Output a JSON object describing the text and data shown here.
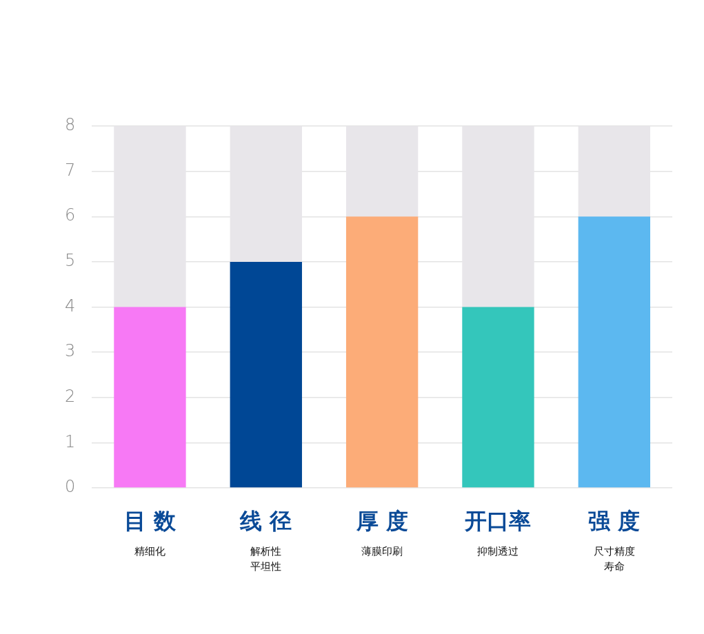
{
  "chart_data": {
    "type": "bar",
    "stacked": true,
    "categories": [
      "目 数",
      "线 径",
      "厚 度",
      "开口率",
      "强 度"
    ],
    "annotations": [
      "精细化",
      "解析性平坦性",
      "薄膜印刷",
      "抑制透过",
      "尺寸精度寿命"
    ],
    "series": [
      {
        "colors": [
          "#f779f5",
          "#004795",
          "#fcac78",
          "#34c6bb",
          "#5cb8f0"
        ],
        "values": [
          4,
          5,
          6,
          4,
          6
        ]
      },
      {
        "color": "#e8e6ea",
        "values": [
          4,
          3,
          2,
          4,
          2
        ]
      }
    ],
    "ylim": [
      0,
      8
    ],
    "yticks": [
      0,
      1,
      2,
      3,
      4,
      5,
      6,
      7,
      8
    ],
    "grid": "y",
    "legend": false
  }
}
